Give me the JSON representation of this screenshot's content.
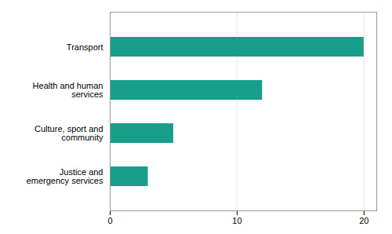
{
  "chart_data": {
    "type": "bar",
    "orientation": "horizontal",
    "categories": [
      "Justice and\nemergency services",
      "Culture, sport and\ncommunity",
      "Health and human\nservices",
      "Transport"
    ],
    "values": [
      3,
      5,
      12,
      20
    ],
    "color": "#1a9e8c",
    "xlim": [
      0,
      21
    ],
    "xticks": [
      0,
      10,
      20
    ],
    "grid": true
  }
}
